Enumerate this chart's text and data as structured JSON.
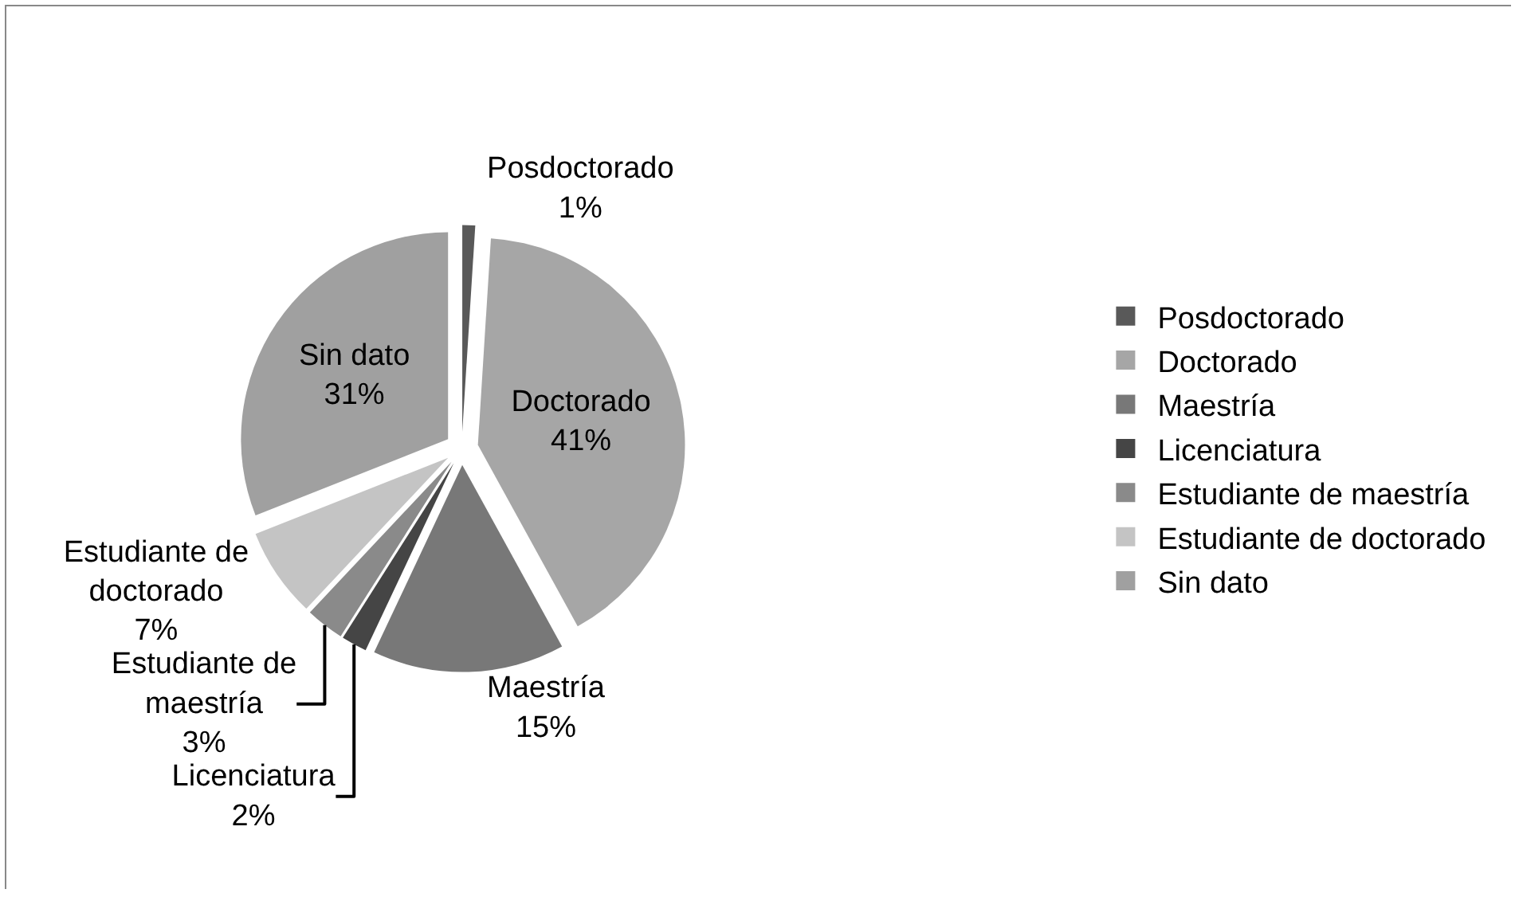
{
  "chart_data": {
    "type": "pie",
    "categories": [
      "Posdoctorado",
      "Doctorado",
      "Maestría",
      "Licenciatura",
      "Estudiante de maestría",
      "Estudiante de doctorado",
      "Sin dato"
    ],
    "values": [
      1,
      41,
      15,
      2,
      3,
      7,
      31
    ],
    "value_labels": [
      "1%",
      "41%",
      "15%",
      "2%",
      "3%",
      "7%",
      "31%"
    ],
    "colors": [
      "#595959",
      "#a6a6a6",
      "#787878",
      "#454545",
      "#8a8a8a",
      "#c4c4c4",
      "#a0a0a0"
    ],
    "legend": "right"
  }
}
